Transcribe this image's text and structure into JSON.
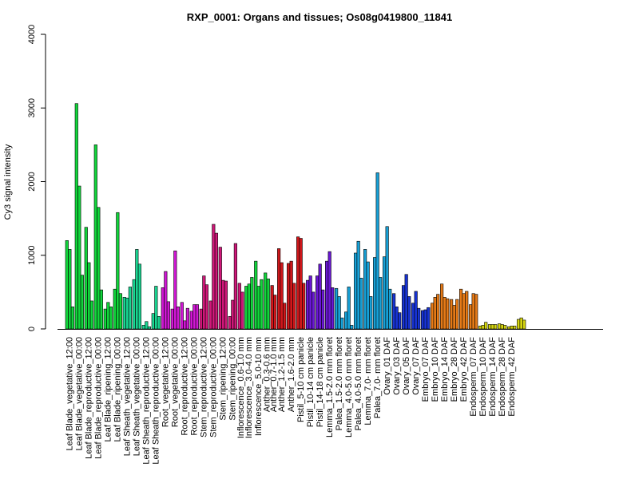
{
  "chart_data": {
    "type": "bar",
    "title": "RXP_0001: Organs and tissues; Os08g0419800_11841",
    "xlabel": "",
    "ylabel": "Cy3 signal intensity",
    "ylim": [
      0,
      4000
    ],
    "yticks": [
      0,
      1000,
      2000,
      3000,
      4000
    ],
    "grid": false,
    "legend": "none",
    "groups": [
      {
        "label": "Leaf Blade_vegetative_12:00",
        "color": "#11D63B",
        "values": [
          1200,
          1080,
          300
        ]
      },
      {
        "label": "Leaf Blade_vegetative_00:00",
        "color": "#11D63B",
        "values": [
          3060,
          1940,
          730
        ]
      },
      {
        "label": "Leaf Blade_reproductive_12:00",
        "color": "#11D63B",
        "values": [
          1380,
          900,
          380
        ]
      },
      {
        "label": "Leaf Blade_reproductive_00:00",
        "color": "#11D63B",
        "values": [
          2500,
          1650,
          530
        ]
      },
      {
        "label": "Leaf Blade_ripening_12:00",
        "color": "#11D63B",
        "values": [
          270,
          360,
          300
        ]
      },
      {
        "label": "Leaf Blade_ripening_00:00",
        "color": "#11D63B",
        "values": [
          540,
          1580,
          480
        ]
      },
      {
        "label": "Leaf Sheath_vegetative_12:00",
        "color": "#19D692",
        "values": [
          430,
          420,
          570
        ]
      },
      {
        "label": "Leaf Sheath_vegetative_00:00",
        "color": "#19D692",
        "values": [
          670,
          1080,
          880
        ]
      },
      {
        "label": "Leaf Sheath_reproductive_12:00",
        "color": "#19D692",
        "values": [
          50,
          100,
          30
        ]
      },
      {
        "label": "Leaf Sheath_reproductive_00:00",
        "color": "#19D692",
        "values": [
          210,
          580,
          170
        ]
      },
      {
        "label": "Root_vegetative_12:00",
        "color": "#D017D4",
        "values": [
          560,
          780,
          370
        ]
      },
      {
        "label": "Root_vegetative_00:00",
        "color": "#D017D4",
        "values": [
          270,
          1060,
          300
        ]
      },
      {
        "label": "Root_reproductive_12:00",
        "color": "#D017D4",
        "values": [
          360,
          110,
          280
        ]
      },
      {
        "label": "Root_reproductive_00:00",
        "color": "#D017D4",
        "values": [
          240,
          330,
          330
        ]
      },
      {
        "label": "Stem_reproductive_12:00",
        "color": "#D01779",
        "values": [
          270,
          720,
          600
        ]
      },
      {
        "label": "Stem_reproductive_00:00",
        "color": "#D01779",
        "values": [
          380,
          1420,
          1300
        ]
      },
      {
        "label": "Stem_ripening_12:00",
        "color": "#D01779",
        "values": [
          1110,
          660,
          650
        ]
      },
      {
        "label": "Stem_ripening_00:00",
        "color": "#D01779",
        "values": [
          170,
          390,
          1160
        ]
      },
      {
        "label": "Inflorescence_0.6-1.0 mm",
        "color": "#D01779",
        "values": [
          620,
          500
        ]
      },
      {
        "label": "Inflorescence_3.0-4.0 mm",
        "color": "#11D63B",
        "values": [
          580,
          610,
          700
        ]
      },
      {
        "label": "Inflorescence_5.0-10 mm",
        "color": "#11D63B",
        "values": [
          920,
          580,
          670
        ]
      },
      {
        "label": "Anther_0.3-0.6 mm",
        "color": "#11D63B",
        "values": [
          760,
          680
        ]
      },
      {
        "label": "Anther_0.7-1.0 mm",
        "color": "#D0171B",
        "values": [
          590,
          460
        ]
      },
      {
        "label": "Anther_1.2-1.5 mm",
        "color": "#D0171B",
        "values": [
          1090,
          900,
          350
        ]
      },
      {
        "label": "Anther_1.6-2.0 mm",
        "color": "#D0171B",
        "values": [
          890,
          920,
          620
        ]
      },
      {
        "label": "Pistil_5-10 cm panicle",
        "color": "#D0171B",
        "values": [
          1250,
          1230,
          620
        ]
      },
      {
        "label": "Pistil_10-14 cm panicle",
        "color": "#6A17D4",
        "values": [
          660,
          720,
          500
        ]
      },
      {
        "label": "Pistil_14-18 cm panicle",
        "color": "#6A17D4",
        "values": [
          720,
          880,
          530
        ]
      },
      {
        "label": "Lemma_1.5-2.0 mm floret",
        "color": "#6A17D4",
        "values": [
          920,
          1050,
          560
        ]
      },
      {
        "label": "Palea_1.5-2.0 mm floret",
        "color": "#17A1D7",
        "values": [
          550,
          440,
          150
        ]
      },
      {
        "label": "Lemma_4.0-5.0 mm floret",
        "color": "#17A1D7",
        "values": [
          230,
          570,
          50
        ]
      },
      {
        "label": "Palea_4.0-5.0 mm floret",
        "color": "#17A1D7",
        "values": [
          1030,
          1190,
          690
        ]
      },
      {
        "label": "Lemma_7.0- mm floret",
        "color": "#17A1D7",
        "values": [
          1080,
          910,
          440
        ]
      },
      {
        "label": "Palea_7.0- mm floret",
        "color": "#17A1D7",
        "values": [
          970,
          2120,
          700
        ]
      },
      {
        "label": "Ovary_01 DAF",
        "color": "#17A1D7",
        "values": [
          980,
          1390,
          540
        ]
      },
      {
        "label": "Ovary_03 DAF",
        "color": "#1733D4",
        "values": [
          480,
          300,
          220
        ]
      },
      {
        "label": "Ovary_05 DAF",
        "color": "#1733D4",
        "values": [
          590,
          740,
          440
        ]
      },
      {
        "label": "Ovary_07 DAF",
        "color": "#1733D4",
        "values": [
          350,
          510,
          280
        ]
      },
      {
        "label": "Embryo_07 DAF",
        "color": "#1733D4",
        "values": [
          250,
          260,
          290
        ]
      },
      {
        "label": "Embryo_10 DAF",
        "color": "#E57A17",
        "values": [
          350,
          430,
          470
        ]
      },
      {
        "label": "Embryo_14 DAF",
        "color": "#E57A17",
        "values": [
          610,
          430,
          410
        ]
      },
      {
        "label": "Embryo_28 DAF",
        "color": "#E57A17",
        "values": [
          400,
          320,
          400
        ]
      },
      {
        "label": "Embryo_42 DAF",
        "color": "#E57A17",
        "values": [
          540,
          480,
          510
        ]
      },
      {
        "label": "Endosperm_07 DAF",
        "color": "#E57A17",
        "values": [
          330,
          480,
          470
        ]
      },
      {
        "label": "Endosperm_10 DAF",
        "color": "#D6D60F",
        "values": [
          40,
          50,
          90
        ]
      },
      {
        "label": "Endosperm_14 DAF",
        "color": "#D6D60F",
        "values": [
          60,
          60,
          60
        ]
      },
      {
        "label": "Endosperm_28 DAF",
        "color": "#D6D60F",
        "values": [
          70,
          60,
          50
        ]
      },
      {
        "label": "Endosperm_42 DAF",
        "color": "#D6D60F",
        "values": [
          30,
          40,
          40
        ]
      },
      {
        "label": "",
        "color": "#D6D60F",
        "values": [
          130,
          150,
          120
        ]
      }
    ],
    "tick_labels": [
      "Leaf Blade_vegetative_12:00",
      "Leaf Blade_vegetative_00:00",
      "Leaf Blade_reproductive_12:00",
      "Leaf Blade_reproductive_00:00",
      "Leaf Blade_ripening_12:00",
      "Leaf Blade_ripening_00:00",
      "Leaf Sheath_vegetative_12:00",
      "Leaf Sheath_vegetative_00:00",
      "Leaf Sheath_reproductive_12:00",
      "Leaf Sheath_reproductive_00:00",
      "Root_vegetative_12:00",
      "Root_vegetative_00:00",
      "Root_reproductive_12:00",
      "Root_reproductive_00:00",
      "Stem_reproductive_12:00",
      "Stem_reproductive_00:00",
      "Stem_ripening_12:00",
      "Stem_ripening_00:00",
      "Inflorescence_0.6-1.0 mm",
      "Inflorescence_3.0-4.0 mm",
      "Inflorescence_5.0-10 mm",
      "Anther_0.3-0.6 mm",
      "Anther_0.7-1.0 mm",
      "Anther_1.2-1.5 mm",
      "Anther_1.6-2.0 mm",
      "Pistil_5-10 cm panicle",
      "Pistil_10-14 cm panicle",
      "Pistil_14-18 cm panicle",
      "Lemma_1.5-2.0 mm floret",
      "Palea_1.5-2.0 mm floret",
      "Lemma_4.0-5.0 mm floret",
      "Palea_4.0-5.0 mm floret",
      "Lemma_7.0- mm floret",
      "Palea_7.0- mm floret",
      "Ovary_01 DAF",
      "Ovary_03 DAF",
      "Ovary_05 DAF",
      "Ovary_07 DAF",
      "Embryo_07 DAF",
      "Embryo_10 DAF",
      "Embryo_14 DAF",
      "Embryo_28 DAF",
      "Embryo_42 DAF",
      "Endosperm_07 DAF",
      "Endosperm_10 DAF",
      "Endosperm_14 DAF",
      "Endosperm_28 DAF",
      "Endosperm_42 DAF"
    ]
  }
}
